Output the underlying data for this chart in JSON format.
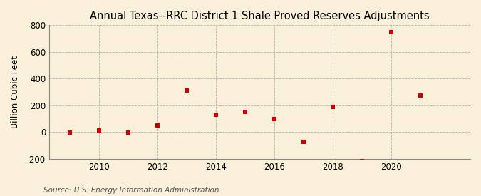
{
  "title": "Annual Texas--RRC District 1 Shale Proved Reserves Adjustments",
  "ylabel": "Billion Cubic Feet",
  "source": "Source: U.S. Energy Information Administration",
  "years": [
    2009,
    2010,
    2011,
    2012,
    2013,
    2014,
    2015,
    2016,
    2017,
    2018,
    2019,
    2020,
    2021
  ],
  "values": [
    -2,
    15,
    -5,
    50,
    310,
    130,
    150,
    100,
    -70,
    190,
    -215,
    750,
    275
  ],
  "marker_color": "#cc0000",
  "marker": "s",
  "marker_size": 4,
  "xlim": [
    2008.3,
    2022.7
  ],
  "ylim": [
    -200,
    800
  ],
  "yticks": [
    -200,
    0,
    200,
    400,
    600,
    800
  ],
  "xticks": [
    2010,
    2012,
    2014,
    2016,
    2018,
    2020
  ],
  "vgrid_at": [
    2010,
    2012,
    2014,
    2016,
    2018,
    2020
  ],
  "hgrid_at": [
    -200,
    0,
    200,
    400,
    600,
    800
  ],
  "background_color": "#faefd9",
  "grid_color": "#b0b0b0",
  "title_fontsize": 10.5,
  "label_fontsize": 8.5,
  "tick_fontsize": 8.5,
  "source_fontsize": 7.5
}
